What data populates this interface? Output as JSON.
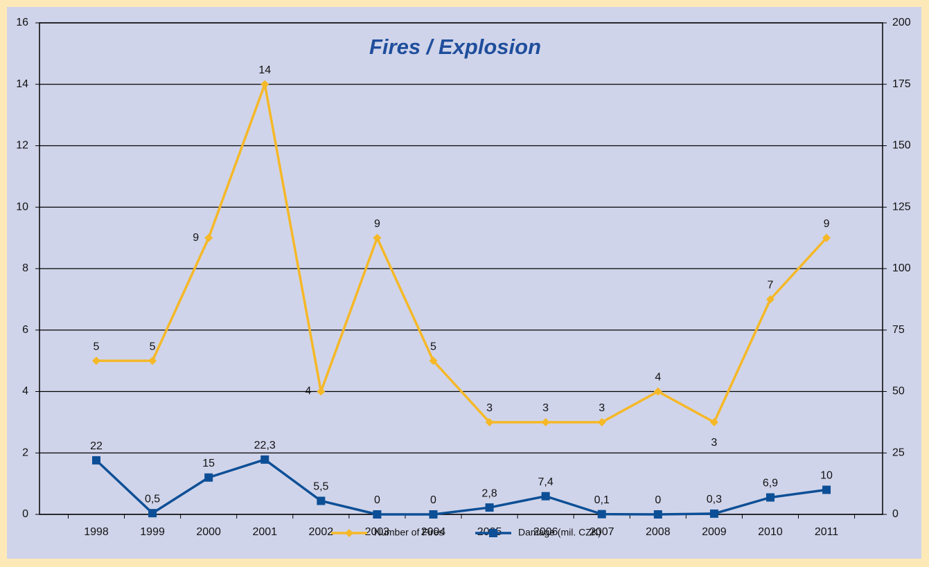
{
  "chart_data": {
    "type": "line",
    "title": "Fires / Explosion",
    "categories": [
      "1998",
      "1999",
      "2000",
      "2001",
      "2002",
      "2003",
      "2004",
      "2005",
      "2006",
      "2007",
      "2008",
      "2009",
      "2010",
      "2011"
    ],
    "series": [
      {
        "name": "Number of Fires",
        "color": "#f5b827",
        "values": [
          5,
          5,
          9,
          14,
          4,
          9,
          5,
          3,
          3,
          3,
          4,
          3,
          7,
          9
        ]
      },
      {
        "name": "Damage (mil. CZK)",
        "color": "#0d4f96",
        "axis": "y2",
        "values": [
          22,
          0.5,
          15,
          22.3,
          5.5,
          0,
          0,
          2.8,
          7.4,
          0.1,
          0,
          0.3,
          6.9,
          10
        ],
        "value_labels": [
          "22",
          "0,5",
          "15",
          "22,3",
          "5,5",
          "0",
          "0",
          "2,8",
          "7,4",
          "0,1",
          "0",
          "0,3",
          "6,9",
          "10"
        ]
      }
    ],
    "ylim": [
      0,
      16
    ],
    "yticks": [
      0,
      2,
      4,
      6,
      8,
      10,
      12,
      14,
      16
    ],
    "y2lim": [
      0,
      200
    ],
    "y2ticks": [
      0,
      25,
      50,
      75,
      100,
      125,
      150,
      175,
      200
    ],
    "grid": true,
    "legend": "bottom"
  }
}
